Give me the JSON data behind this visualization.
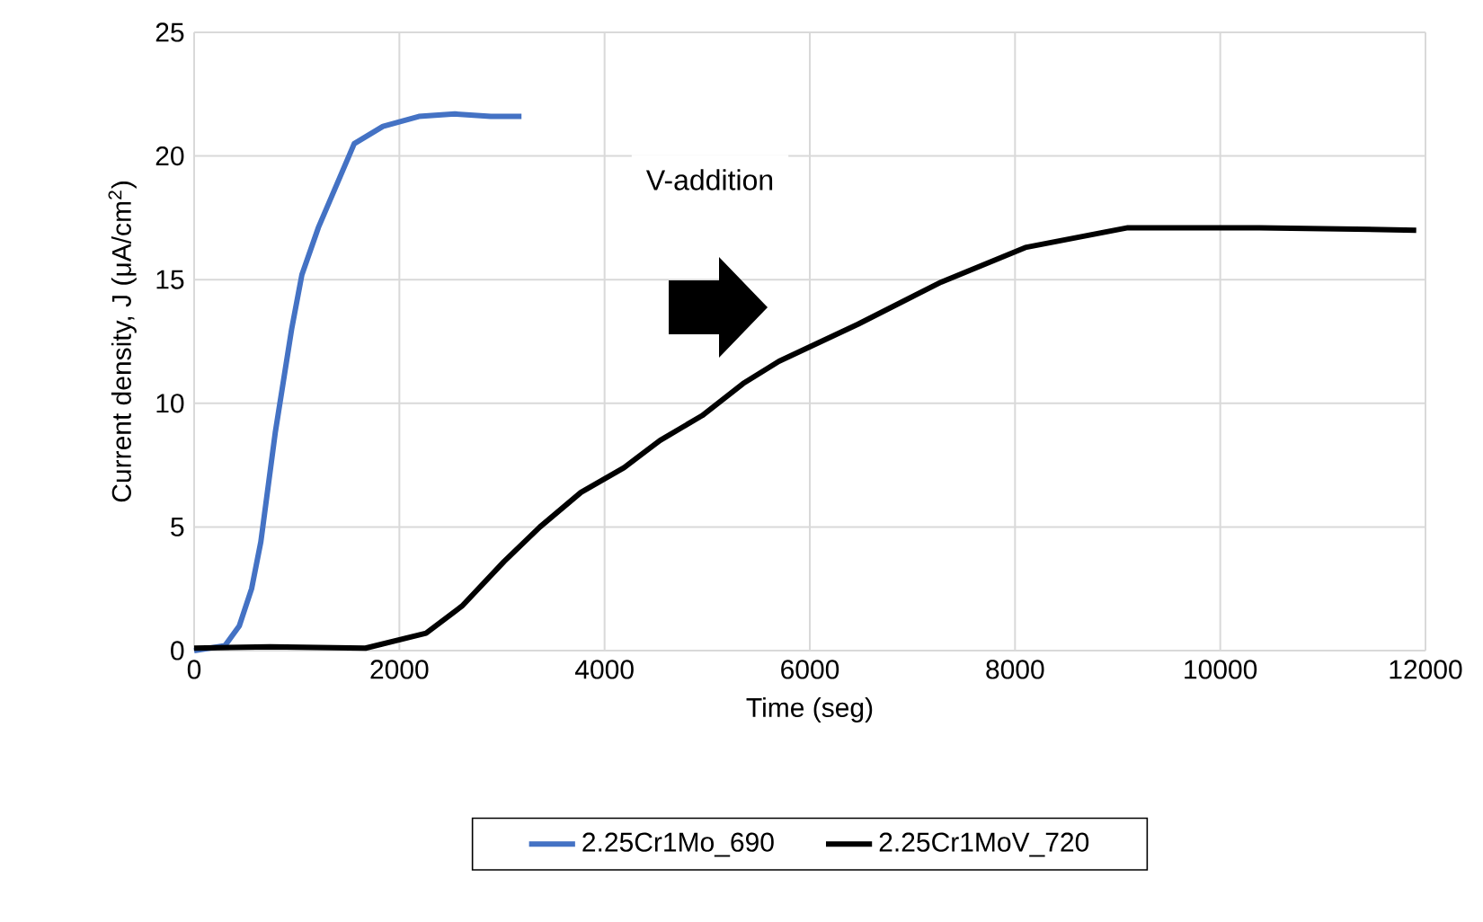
{
  "chart_data": {
    "type": "line",
    "xlabel": "Time (seg)",
    "ylabel": "Current density, J  (μA/cm$^{2}$)",
    "xlim": [
      0,
      12000
    ],
    "xticks": [
      0,
      2000,
      4000,
      6000,
      8000,
      10000,
      12000
    ],
    "ylim": [
      0,
      25
    ],
    "yticks": [
      0,
      5,
      10,
      15,
      20,
      25
    ],
    "grid": true,
    "legend": "bottom",
    "annotations": [
      "V-addition"
    ],
    "series": [
      {
        "name": "2.25Cr1Mo_690",
        "color": "#4472c4",
        "x": [
          0,
          300,
          440,
          560,
          650,
          790,
          950,
          1050,
          1210,
          1560,
          1840,
          2190,
          2540,
          2890,
          3190
        ],
        "values": [
          0,
          0.2,
          1,
          2.5,
          4.4,
          8.8,
          13,
          15.2,
          17.1,
          20.5,
          21.2,
          21.6,
          21.7,
          21.6,
          21.6
        ]
      },
      {
        "name": "2.25Cr1MoV_720",
        "color": "#000000",
        "x": [
          0,
          740,
          1670,
          2260,
          2610,
          3020,
          3370,
          3770,
          4190,
          4540,
          4950,
          5350,
          5700,
          6470,
          7280,
          8100,
          9100,
          10380,
          11910
        ],
        "values": [
          0.1,
          0.15,
          0.1,
          0.7,
          1.8,
          3.6,
          5.0,
          6.4,
          7.4,
          8.5,
          9.5,
          10.8,
          11.7,
          13.2,
          14.9,
          16.3,
          17.1,
          17.1,
          17.0
        ]
      }
    ]
  }
}
